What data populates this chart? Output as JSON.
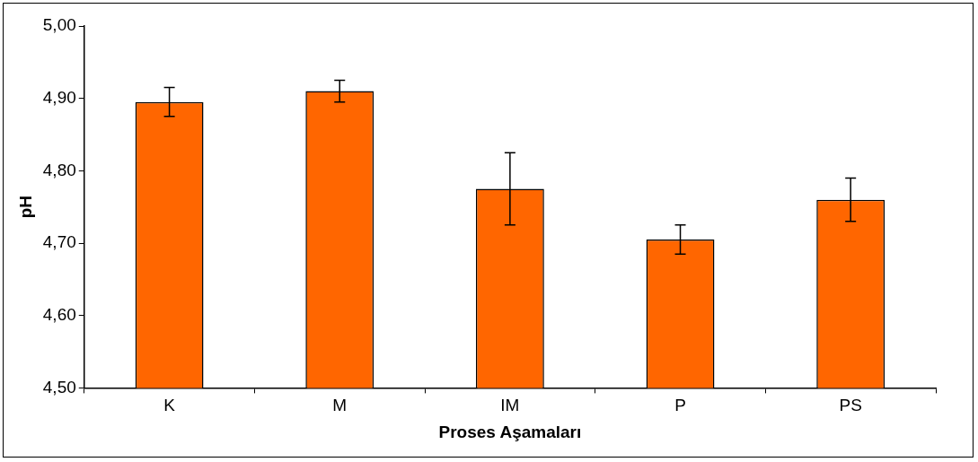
{
  "chart_data": {
    "type": "bar",
    "xlabel": "Proses Aşamaları",
    "ylabel": "pH",
    "categories": [
      "K",
      "M",
      "IM",
      "P",
      "PS"
    ],
    "series": [
      {
        "color": "#ff6600",
        "values": [
          4.895,
          4.91,
          4.775,
          4.705,
          4.76
        ],
        "errors": [
          0.02,
          0.015,
          0.05,
          0.02,
          0.03
        ]
      }
    ],
    "ylim": [
      4.5,
      5.0
    ],
    "yticks": [
      {
        "value": 4.5,
        "label": "4,50"
      },
      {
        "value": 4.6,
        "label": "4,60"
      },
      {
        "value": 4.7,
        "label": "4,70"
      },
      {
        "value": 4.8,
        "label": "4,80"
      },
      {
        "value": 4.9,
        "label": "4,90"
      },
      {
        "value": 5.0,
        "label": "5,00"
      }
    ],
    "grid": false,
    "legend": false
  }
}
